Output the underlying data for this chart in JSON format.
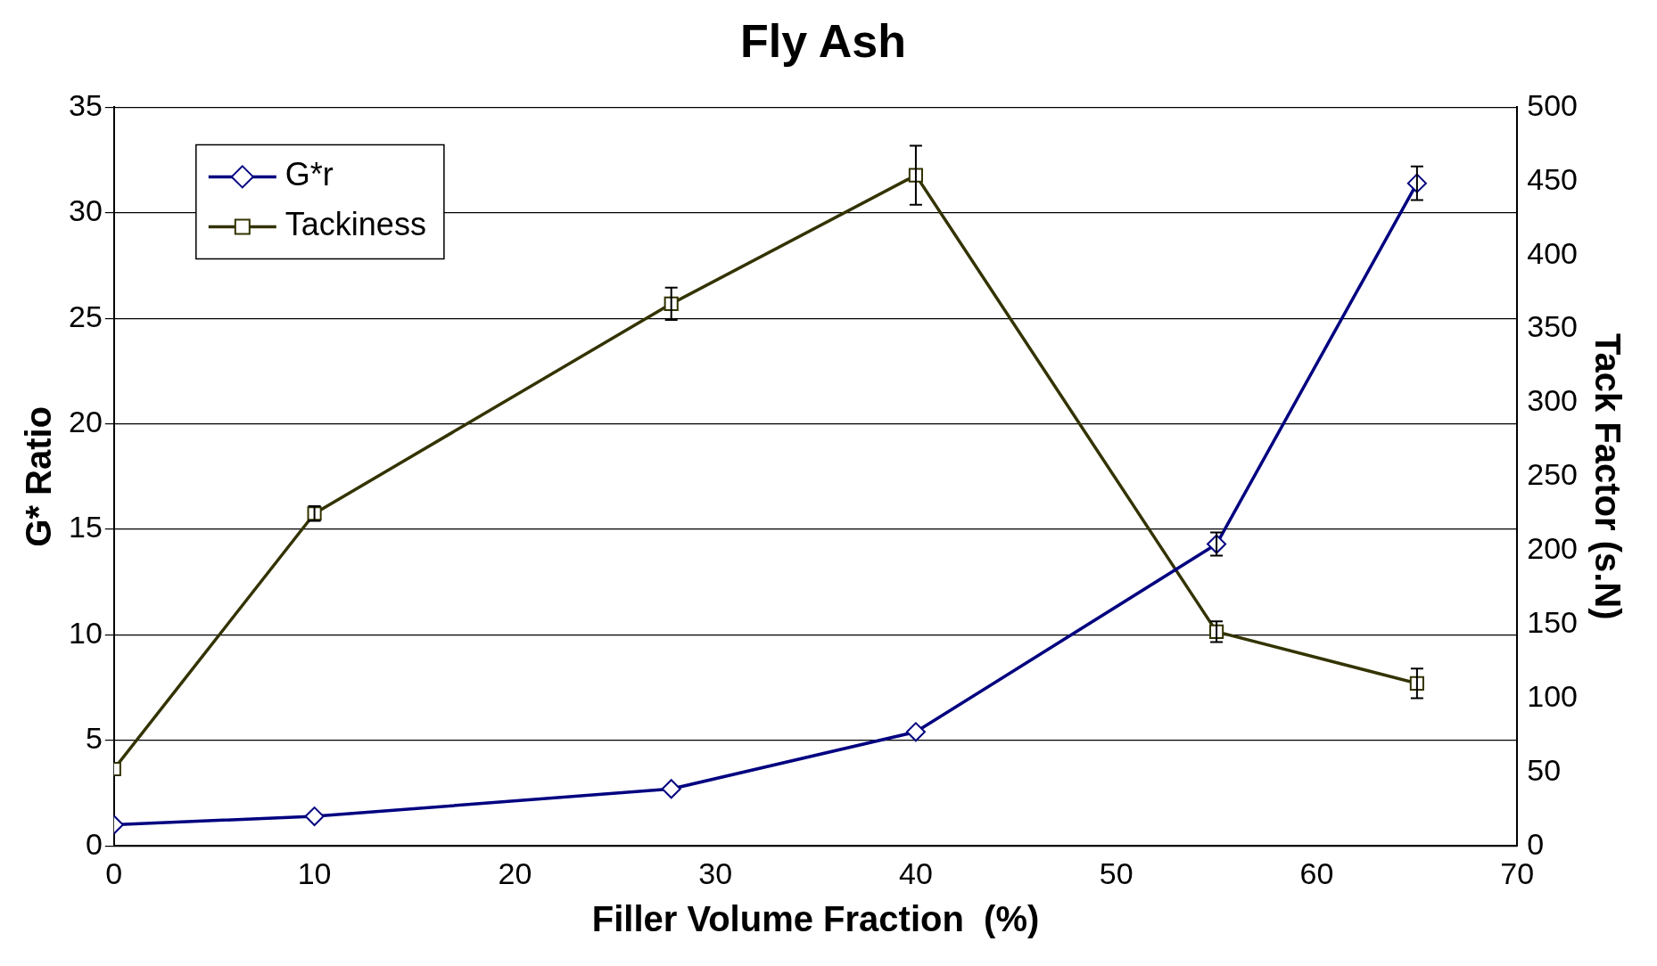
{
  "chart_data": {
    "type": "line",
    "title": "Fly Ash",
    "xlabel": "Filler Volume Fraction  (%)",
    "ylabel": "G* Ratio",
    "y2label": "Tack Factor (s.N)",
    "xlim": [
      0,
      70
    ],
    "xticks": [
      0,
      10,
      20,
      30,
      40,
      50,
      60,
      70
    ],
    "ylim": [
      0,
      35
    ],
    "yticks": [
      0,
      5,
      10,
      15,
      20,
      25,
      30,
      35
    ],
    "y2lim": [
      0,
      500
    ],
    "y2ticks": [
      0,
      50,
      100,
      150,
      200,
      250,
      300,
      350,
      400,
      450,
      500
    ],
    "grid": "y",
    "legend": "top left",
    "line_style": "solid",
    "series": [
      {
        "name": "G*r",
        "color": "#000080",
        "marker": "diamond",
        "x": [
          0,
          10,
          27.8,
          40,
          55,
          65
        ],
        "values": [
          1.0,
          1.4,
          2.7,
          5.4,
          14.3,
          31.4
        ],
        "errors": [
          null,
          null,
          null,
          null,
          0.55,
          0.8
        ]
      },
      {
        "name": "Tackiness",
        "color": "#333300",
        "marker": "square",
        "axis": "y2",
        "x": [
          0,
          10,
          27.8,
          40,
          55,
          65
        ],
        "values": [
          52,
          225,
          367,
          454,
          145,
          110
        ],
        "errors": [
          null,
          5,
          11,
          20,
          7,
          10
        ]
      }
    ]
  }
}
